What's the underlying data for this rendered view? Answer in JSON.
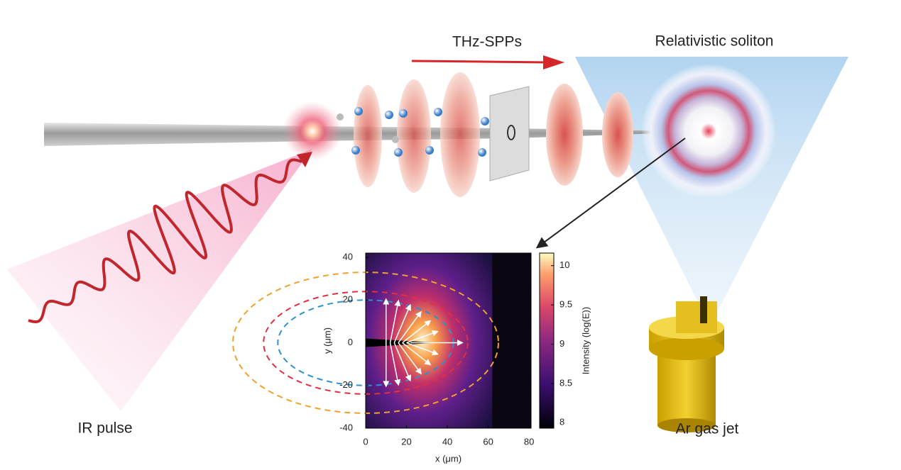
{
  "labels": {
    "thz": "THz-SPPs",
    "soliton": "Relativistic soliton",
    "ir": "IR pulse",
    "jet": "Ar gas jet"
  },
  "inset": {
    "x_label": "x (μm)",
    "y_label": "y (μm)",
    "colorbar_label": "Intensity (log(E))",
    "xlim": [
      0,
      81
    ],
    "ylim": [
      -40,
      42
    ],
    "xticks": [
      0,
      20,
      40,
      60,
      80
    ],
    "yticks": [
      40,
      20,
      0,
      -20,
      -40
    ],
    "clim": [
      7.93,
      10.16
    ],
    "cticks": [
      8,
      8.5,
      9,
      9.5,
      10
    ]
  }
}
